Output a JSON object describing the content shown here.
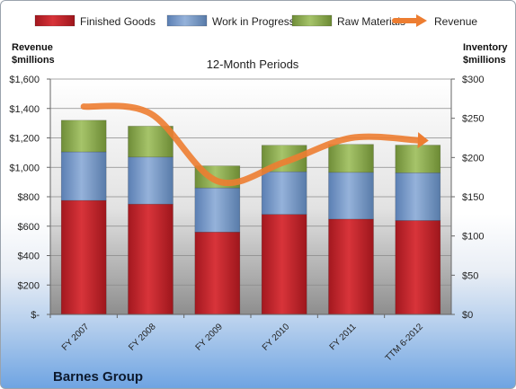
{
  "chart_data": {
    "type": "bar",
    "stacked": true,
    "categories": [
      "FY 2007",
      "FY 2008",
      "FY 2009",
      "FY 2010",
      "FY 2011",
      "TTM 6-2012"
    ],
    "series": [
      {
        "name": "Finished Goods",
        "values": [
          775,
          750,
          560,
          680,
          648,
          638
        ],
        "color": "#c0282e"
      },
      {
        "name": "Work in Progress",
        "values": [
          330,
          320,
          300,
          290,
          318,
          325
        ],
        "color": "#7a9ccc"
      },
      {
        "name": "Raw Materials",
        "values": [
          215,
          210,
          150,
          180,
          190,
          188
        ],
        "color": "#93b455"
      }
    ],
    "line_series": {
      "name": "Revenue",
      "values": [
        265,
        256,
        170,
        194,
        225,
        222
      ],
      "color": "#ed7d31"
    },
    "title": "12-Month Periods",
    "left_axis_label": "Revenue\n$millions",
    "right_axis_label": "Inventory\n$millions",
    "left_ticks": [
      "$-",
      "$200",
      "$400",
      "$600",
      "$800",
      "$1,000",
      "$1,200",
      "$1,400",
      "$1,600"
    ],
    "right_ticks": [
      "$0",
      "$50",
      "$100",
      "$150",
      "$200",
      "$250",
      "$300"
    ],
    "left_range": [
      0,
      1600
    ],
    "right_range": [
      0,
      300
    ],
    "grid": true,
    "legend_position": "top",
    "company": "Barnes Group"
  }
}
